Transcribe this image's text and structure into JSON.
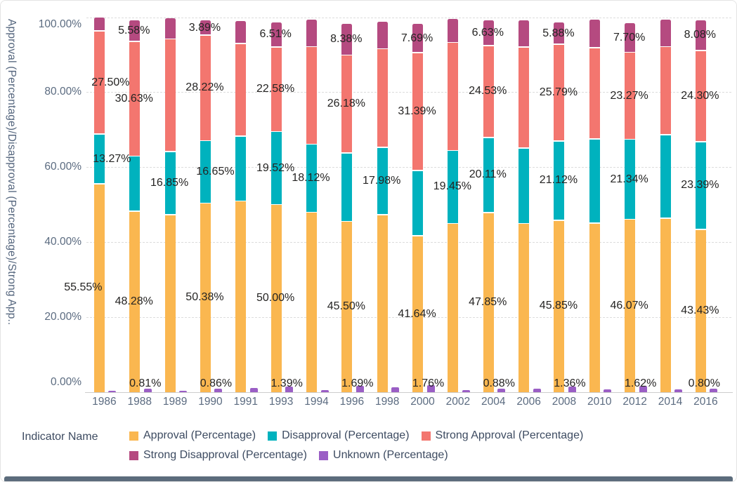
{
  "chart_data": {
    "type": "bar",
    "variant": "100-percent-stacked-column",
    "title": "",
    "y_axis": {
      "label": "Approval (Percentage)/Disapproval (Percentage)/Strong App..",
      "ticks": [
        {
          "text": "0.00%",
          "value": 0
        },
        {
          "text": "20.00%",
          "value": 20
        },
        {
          "text": "40.00%",
          "value": 40
        },
        {
          "text": "60.00%",
          "value": 60
        },
        {
          "text": "80.00%",
          "value": 80
        },
        {
          "text": "100.00%",
          "value": 100
        }
      ],
      "range": [
        0,
        100
      ],
      "grid": true
    },
    "x_axis": {
      "categories": [
        "1986",
        "1988",
        "1989",
        "1990",
        "1991",
        "1993",
        "1994",
        "1996",
        "1998",
        "2000",
        "2002",
        "2004",
        "2006",
        "2008",
        "2010",
        "2012",
        "2014",
        "2016"
      ]
    },
    "legend": {
      "title": "Indicator Name",
      "position": "bottom"
    },
    "colors": {
      "approval": "#FAB750",
      "disapproval": "#00B2BE",
      "strong_approval": "#F3766F",
      "strong_disapproval": "#B54A80",
      "unknown": "#9A5EC5",
      "axis_text": "#5B6B80",
      "data_label_text": "#252423",
      "legend_text": "#3D4B61",
      "gridline": "#DCDCDC",
      "bottom_edge": "#5C6C7C"
    },
    "series": [
      {
        "name": "Approval (Percentage)",
        "color": "#FAB750",
        "values": [
          55.55,
          48.28,
          47.3,
          50.38,
          51.0,
          50.0,
          48.0,
          45.5,
          47.3,
          41.64,
          45.0,
          47.85,
          45.0,
          45.85,
          45.1,
          46.07,
          46.4,
          43.43
        ]
      },
      {
        "name": "Disapproval (Percentage)",
        "color": "#00B2BE",
        "values": [
          13.27,
          14.7,
          16.85,
          16.65,
          17.3,
          19.52,
          18.12,
          18.25,
          17.98,
          17.52,
          19.45,
          20.11,
          20.1,
          21.12,
          22.4,
          21.34,
          22.3,
          23.39
        ]
      },
      {
        "name": "Strong Approval (Percentage)",
        "color": "#F3766F",
        "values": [
          27.5,
          30.63,
          30.1,
          28.22,
          24.7,
          22.58,
          26.0,
          26.18,
          26.3,
          31.39,
          28.8,
          24.53,
          27.0,
          25.79,
          24.4,
          23.27,
          23.45,
          24.3
        ]
      },
      {
        "name": "Strong Disapproval (Percentage)",
        "color": "#B54A80",
        "values": [
          3.53,
          5.58,
          5.4,
          3.89,
          6.0,
          6.51,
          7.3,
          8.38,
          7.2,
          7.69,
          6.3,
          6.63,
          7.1,
          5.88,
          7.5,
          7.7,
          7.25,
          8.08
        ]
      },
      {
        "name": "Unknown (Percentage)",
        "color": "#9A5EC5",
        "display": "side-mini-bar",
        "values": [
          0.15,
          0.81,
          0.35,
          0.86,
          1.0,
          1.39,
          0.58,
          1.69,
          1.22,
          1.76,
          0.45,
          0.88,
          0.8,
          1.36,
          0.6,
          1.62,
          0.6,
          0.8
        ]
      }
    ],
    "data_labels": [
      {
        "series": 0,
        "category": "1986",
        "text": "55.55%",
        "dx": -22
      },
      {
        "series": 0,
        "category": "1988",
        "text": "48.28%"
      },
      {
        "series": 0,
        "category": "1990",
        "text": "50.38%"
      },
      {
        "series": 0,
        "category": "1993",
        "text": "50.00%"
      },
      {
        "series": 0,
        "category": "1996",
        "text": "45.50%"
      },
      {
        "series": 0,
        "category": "2000",
        "text": "41.64%"
      },
      {
        "series": 0,
        "category": "2004",
        "text": "47.85%"
      },
      {
        "series": 0,
        "category": "2008",
        "text": "45.85%"
      },
      {
        "series": 0,
        "category": "2012",
        "text": "46.07%"
      },
      {
        "series": 0,
        "category": "2016",
        "text": "43.43%"
      },
      {
        "series": 1,
        "category": "1986",
        "text": "13.27%",
        "dx": 19
      },
      {
        "series": 1,
        "category": "1989",
        "text": "16.85%"
      },
      {
        "series": 1,
        "category": "1990",
        "text": "16.65%",
        "dx": 15
      },
      {
        "series": 1,
        "category": "1993",
        "text": "19.52%"
      },
      {
        "series": 1,
        "category": "1994",
        "text": "18.12%"
      },
      {
        "series": 1,
        "category": "1998",
        "text": "17.98%"
      },
      {
        "series": 1,
        "category": "2002",
        "text": "19.45%"
      },
      {
        "series": 1,
        "category": "2004",
        "text": "20.11%"
      },
      {
        "series": 1,
        "category": "2008",
        "text": "21.12%"
      },
      {
        "series": 1,
        "category": "2012",
        "text": "21.34%"
      },
      {
        "series": 1,
        "category": "2016",
        "text": "23.39%"
      },
      {
        "series": 2,
        "category": "1986",
        "text": "27.50%",
        "dx": 17
      },
      {
        "series": 2,
        "category": "1988",
        "text": "30.63%"
      },
      {
        "series": 2,
        "category": "1990",
        "text": "28.22%"
      },
      {
        "series": 2,
        "category": "1993",
        "text": "22.58%"
      },
      {
        "series": 2,
        "category": "1996",
        "text": "26.18%"
      },
      {
        "series": 2,
        "category": "2000",
        "text": "31.39%"
      },
      {
        "series": 2,
        "category": "2004",
        "text": "24.53%"
      },
      {
        "series": 2,
        "category": "2008",
        "text": "25.79%"
      },
      {
        "series": 2,
        "category": "2012",
        "text": "23.27%"
      },
      {
        "series": 2,
        "category": "2016",
        "text": "24.30%"
      },
      {
        "series": 3,
        "category": "1988",
        "text": "5.58%"
      },
      {
        "series": 3,
        "category": "1990",
        "text": "3.89%"
      },
      {
        "series": 3,
        "category": "1993",
        "text": "6.51%"
      },
      {
        "series": 3,
        "category": "1996",
        "text": "8.38%"
      },
      {
        "series": 3,
        "category": "2000",
        "text": "7.69%"
      },
      {
        "series": 3,
        "category": "2004",
        "text": "6.63%"
      },
      {
        "series": 3,
        "category": "2008",
        "text": "5.88%"
      },
      {
        "series": 3,
        "category": "2012",
        "text": "7.70%"
      },
      {
        "series": 3,
        "category": "2016",
        "text": "8.08%"
      },
      {
        "series": 4,
        "category": "1988",
        "text": "0.81%"
      },
      {
        "series": 4,
        "category": "1990",
        "text": "0.86%"
      },
      {
        "series": 4,
        "category": "1993",
        "text": "1.39%"
      },
      {
        "series": 4,
        "category": "1996",
        "text": "1.69%"
      },
      {
        "series": 4,
        "category": "2000",
        "text": "1.76%"
      },
      {
        "series": 4,
        "category": "2004",
        "text": "0.88%"
      },
      {
        "series": 4,
        "category": "2008",
        "text": "1.36%"
      },
      {
        "series": 4,
        "category": "2012",
        "text": "1.62%"
      },
      {
        "series": 4,
        "category": "2016",
        "text": "0.80%",
        "dx": -10
      }
    ]
  }
}
